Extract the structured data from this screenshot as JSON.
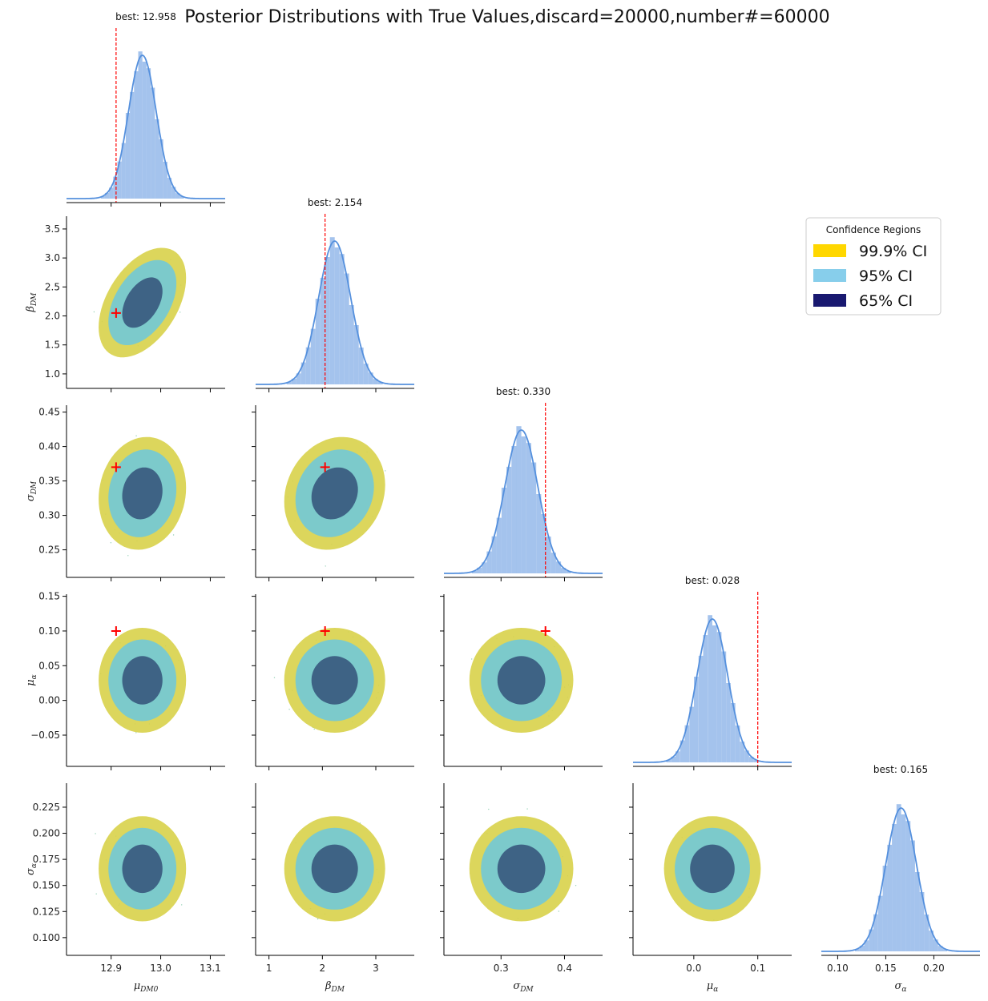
{
  "title": "Posterior Distributions with True Values,discard=20000,number#=60000",
  "legend": {
    "title": "Confidence Regions",
    "placement": "right",
    "entries": [
      {
        "label": "99.9% CI",
        "color": "#FFD700"
      },
      {
        "label": "95% CI",
        "color": "#87CEEB"
      },
      {
        "label": "65% CI",
        "color": "#191970"
      }
    ]
  },
  "colors": {
    "histogram": "#8DB4E8",
    "kde": "#5590DD",
    "truth_line": "#FF0000",
    "scatter_outer": "#D8D24A",
    "scatter_mid": "#7CCACB",
    "scatter_inner": "#3E6385",
    "scatter_dots": "#6CBF9A"
  },
  "chart_data": {
    "type": "corner",
    "parameters": [
      {
        "key": "mu_DM0",
        "label": "μDM0",
        "sym": "μ",
        "sub": "DM0",
        "range": [
          12.81,
          13.13
        ],
        "ticks": [
          12.9,
          13.0,
          13.1
        ],
        "tick_labels": [
          "12.9",
          "13.0",
          "13.1"
        ],
        "mean": 12.963,
        "std": 0.028,
        "truth": 12.91,
        "best_label": "best: 12.958"
      },
      {
        "key": "beta_DM",
        "label": "βDM",
        "sym": "β",
        "sub": "DM",
        "range": [
          0.75,
          3.72
        ],
        "ticks": [
          1,
          2,
          3
        ],
        "tick_labels": [
          "1",
          "2",
          "3"
        ],
        "yticks": [
          1.0,
          1.5,
          2.0,
          2.5,
          3.0,
          3.5
        ],
        "ytick_labels": [
          "1.0",
          "1.5",
          "2.0",
          "2.5",
          "3.0",
          "3.5"
        ],
        "mean": 2.23,
        "std": 0.3,
        "truth": 2.05,
        "best_label": "best: 2.154"
      },
      {
        "key": "sigma_DM",
        "label": "σDM",
        "sym": "σ",
        "sub": "DM",
        "range": [
          0.21,
          0.46
        ],
        "ticks": [
          0.3,
          0.4
        ],
        "tick_labels": [
          "0.3",
          "0.4"
        ],
        "yticks": [
          0.25,
          0.3,
          0.35,
          0.4,
          0.45
        ],
        "ytick_labels": [
          "0.25",
          "0.30",
          "0.35",
          "0.40",
          "0.45"
        ],
        "mean": 0.332,
        "std": 0.026,
        "truth": 0.37,
        "best_label": "best: 0.330"
      },
      {
        "key": "mu_alpha",
        "label": "μα",
        "sym": "μ",
        "sub": "α",
        "range": [
          -0.095,
          0.153
        ],
        "ticks": [
          0.0,
          0.1
        ],
        "tick_labels": [
          "0.0",
          "0.1"
        ],
        "yticks": [
          -0.05,
          0.0,
          0.05,
          0.1,
          0.15
        ],
        "ytick_labels": [
          "−0.05",
          "0.00",
          "0.05",
          "0.10",
          "0.15"
        ],
        "mean": 0.029,
        "std": 0.024,
        "truth": 0.1,
        "best_label": "best: 0.028"
      },
      {
        "key": "sigma_alpha",
        "label": "σα",
        "sym": "σ",
        "sub": "α",
        "range": [
          0.083,
          0.248
        ],
        "ticks": [
          0.1,
          0.15,
          0.2
        ],
        "tick_labels": [
          "0.10",
          "0.15",
          "0.20"
        ],
        "yticks": [
          0.1,
          0.125,
          0.15,
          0.175,
          0.2,
          0.225
        ],
        "ytick_labels": [
          "0.100",
          "0.125",
          "0.150",
          "0.175",
          "0.200",
          "0.225"
        ],
        "mean": 0.166,
        "std": 0.016,
        "truth": null,
        "best_label": "best: 0.165"
      }
    ],
    "correlations": [
      {
        "pair": [
          "mu_DM0",
          "beta_DM"
        ],
        "rho": 0.45
      },
      {
        "pair": [
          "mu_DM0",
          "sigma_DM"
        ],
        "rho": 0.1
      },
      {
        "pair": [
          "beta_DM",
          "sigma_DM"
        ],
        "rho": 0.15
      }
    ],
    "histogram_bins": 20,
    "contour_levels": [
      "99.9% CI",
      "95% CI",
      "65% CI"
    ]
  }
}
